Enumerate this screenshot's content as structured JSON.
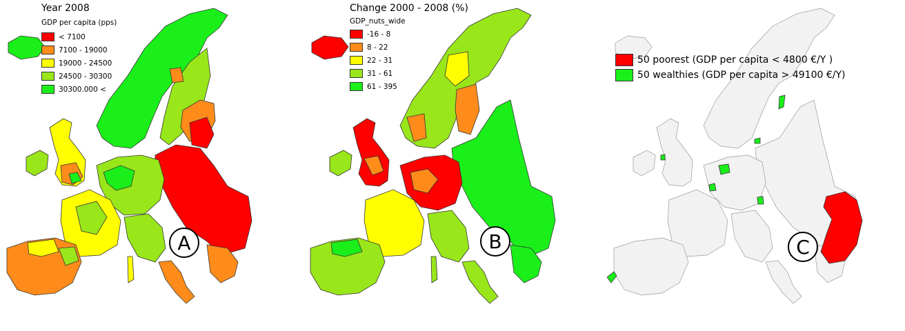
{
  "panels": [
    {
      "id": "A",
      "title": "Year 2008",
      "subtitle": "GDP per capita (pps)",
      "legend": [
        {
          "label": "< 7100",
          "color": "#ff0000"
        },
        {
          "label": "7100 - 19000",
          "color": "#ff8c1a"
        },
        {
          "label": "19000 - 24500",
          "color": "#ffff00"
        },
        {
          "label": "24500 - 30300",
          "color": "#99e61a"
        },
        {
          "label": "30300.000 <",
          "color": "#1aef1a"
        }
      ],
      "marker": "A"
    },
    {
      "id": "B",
      "title": "Change 2000 - 2008 (%)",
      "subtitle": "GDP_nuts_wide",
      "legend": [
        {
          "label": "-16 - 8",
          "color": "#ff0000"
        },
        {
          "label": "8 - 22",
          "color": "#ff8c1a"
        },
        {
          "label": "22 - 31",
          "color": "#ffff00"
        },
        {
          "label": "31 - 61",
          "color": "#99e61a"
        },
        {
          "label": "61 - 395",
          "color": "#1aef1a"
        }
      ],
      "marker": "B"
    },
    {
      "id": "C",
      "legend": [
        {
          "label": "50 poorest (GDP per capita < 4800 €/Y )",
          "color": "#ff0000"
        },
        {
          "label": "50 wealthies (GDP per capita > 49100 €/Y)",
          "color": "#1aef1a"
        }
      ],
      "marker": "C"
    }
  ]
}
